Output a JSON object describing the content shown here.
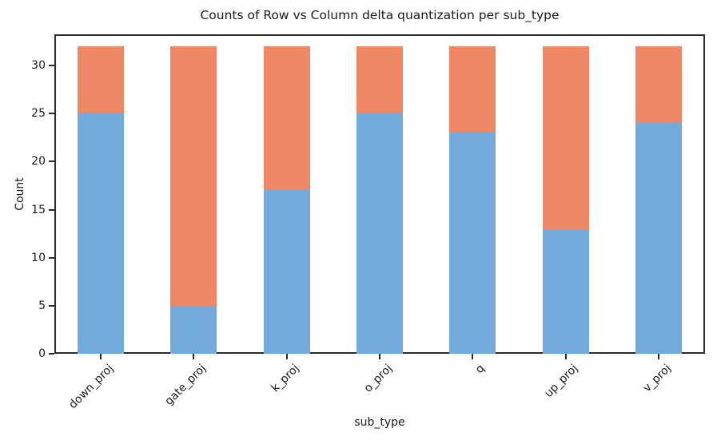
{
  "figure": {
    "title": "Counts of Row vs Column delta quantization per sub_type",
    "xlabel": "sub_type",
    "ylabel": "Count"
  },
  "chart_data": {
    "type": "bar",
    "stacked": true,
    "title": "Counts of Row vs Column delta quantization per sub_type",
    "xlabel": "sub_type",
    "ylabel": "Count",
    "categories": [
      "down_proj",
      "gate_proj",
      "k_proj",
      "o_proj",
      "q",
      "up_proj",
      "v_proj"
    ],
    "series": [
      {
        "name": "bottom-blue-segment",
        "color": "#73a9db",
        "values": [
          25,
          5,
          17,
          25,
          23,
          13,
          24
        ]
      },
      {
        "name": "top-orange-segment",
        "color": "#ee8766",
        "values": [
          7,
          27,
          15,
          7,
          9,
          19,
          8
        ]
      }
    ],
    "stack_totals": [
      32,
      32,
      32,
      32,
      32,
      32,
      32
    ],
    "yticks": [
      0,
      5,
      10,
      15,
      20,
      25,
      30
    ],
    "ylim": [
      0,
      33.25
    ],
    "xtick_rotation_deg": 45,
    "grid": false,
    "legend": "none",
    "spine_color": "#2b2b2b",
    "background_color": "#ffffff"
  }
}
